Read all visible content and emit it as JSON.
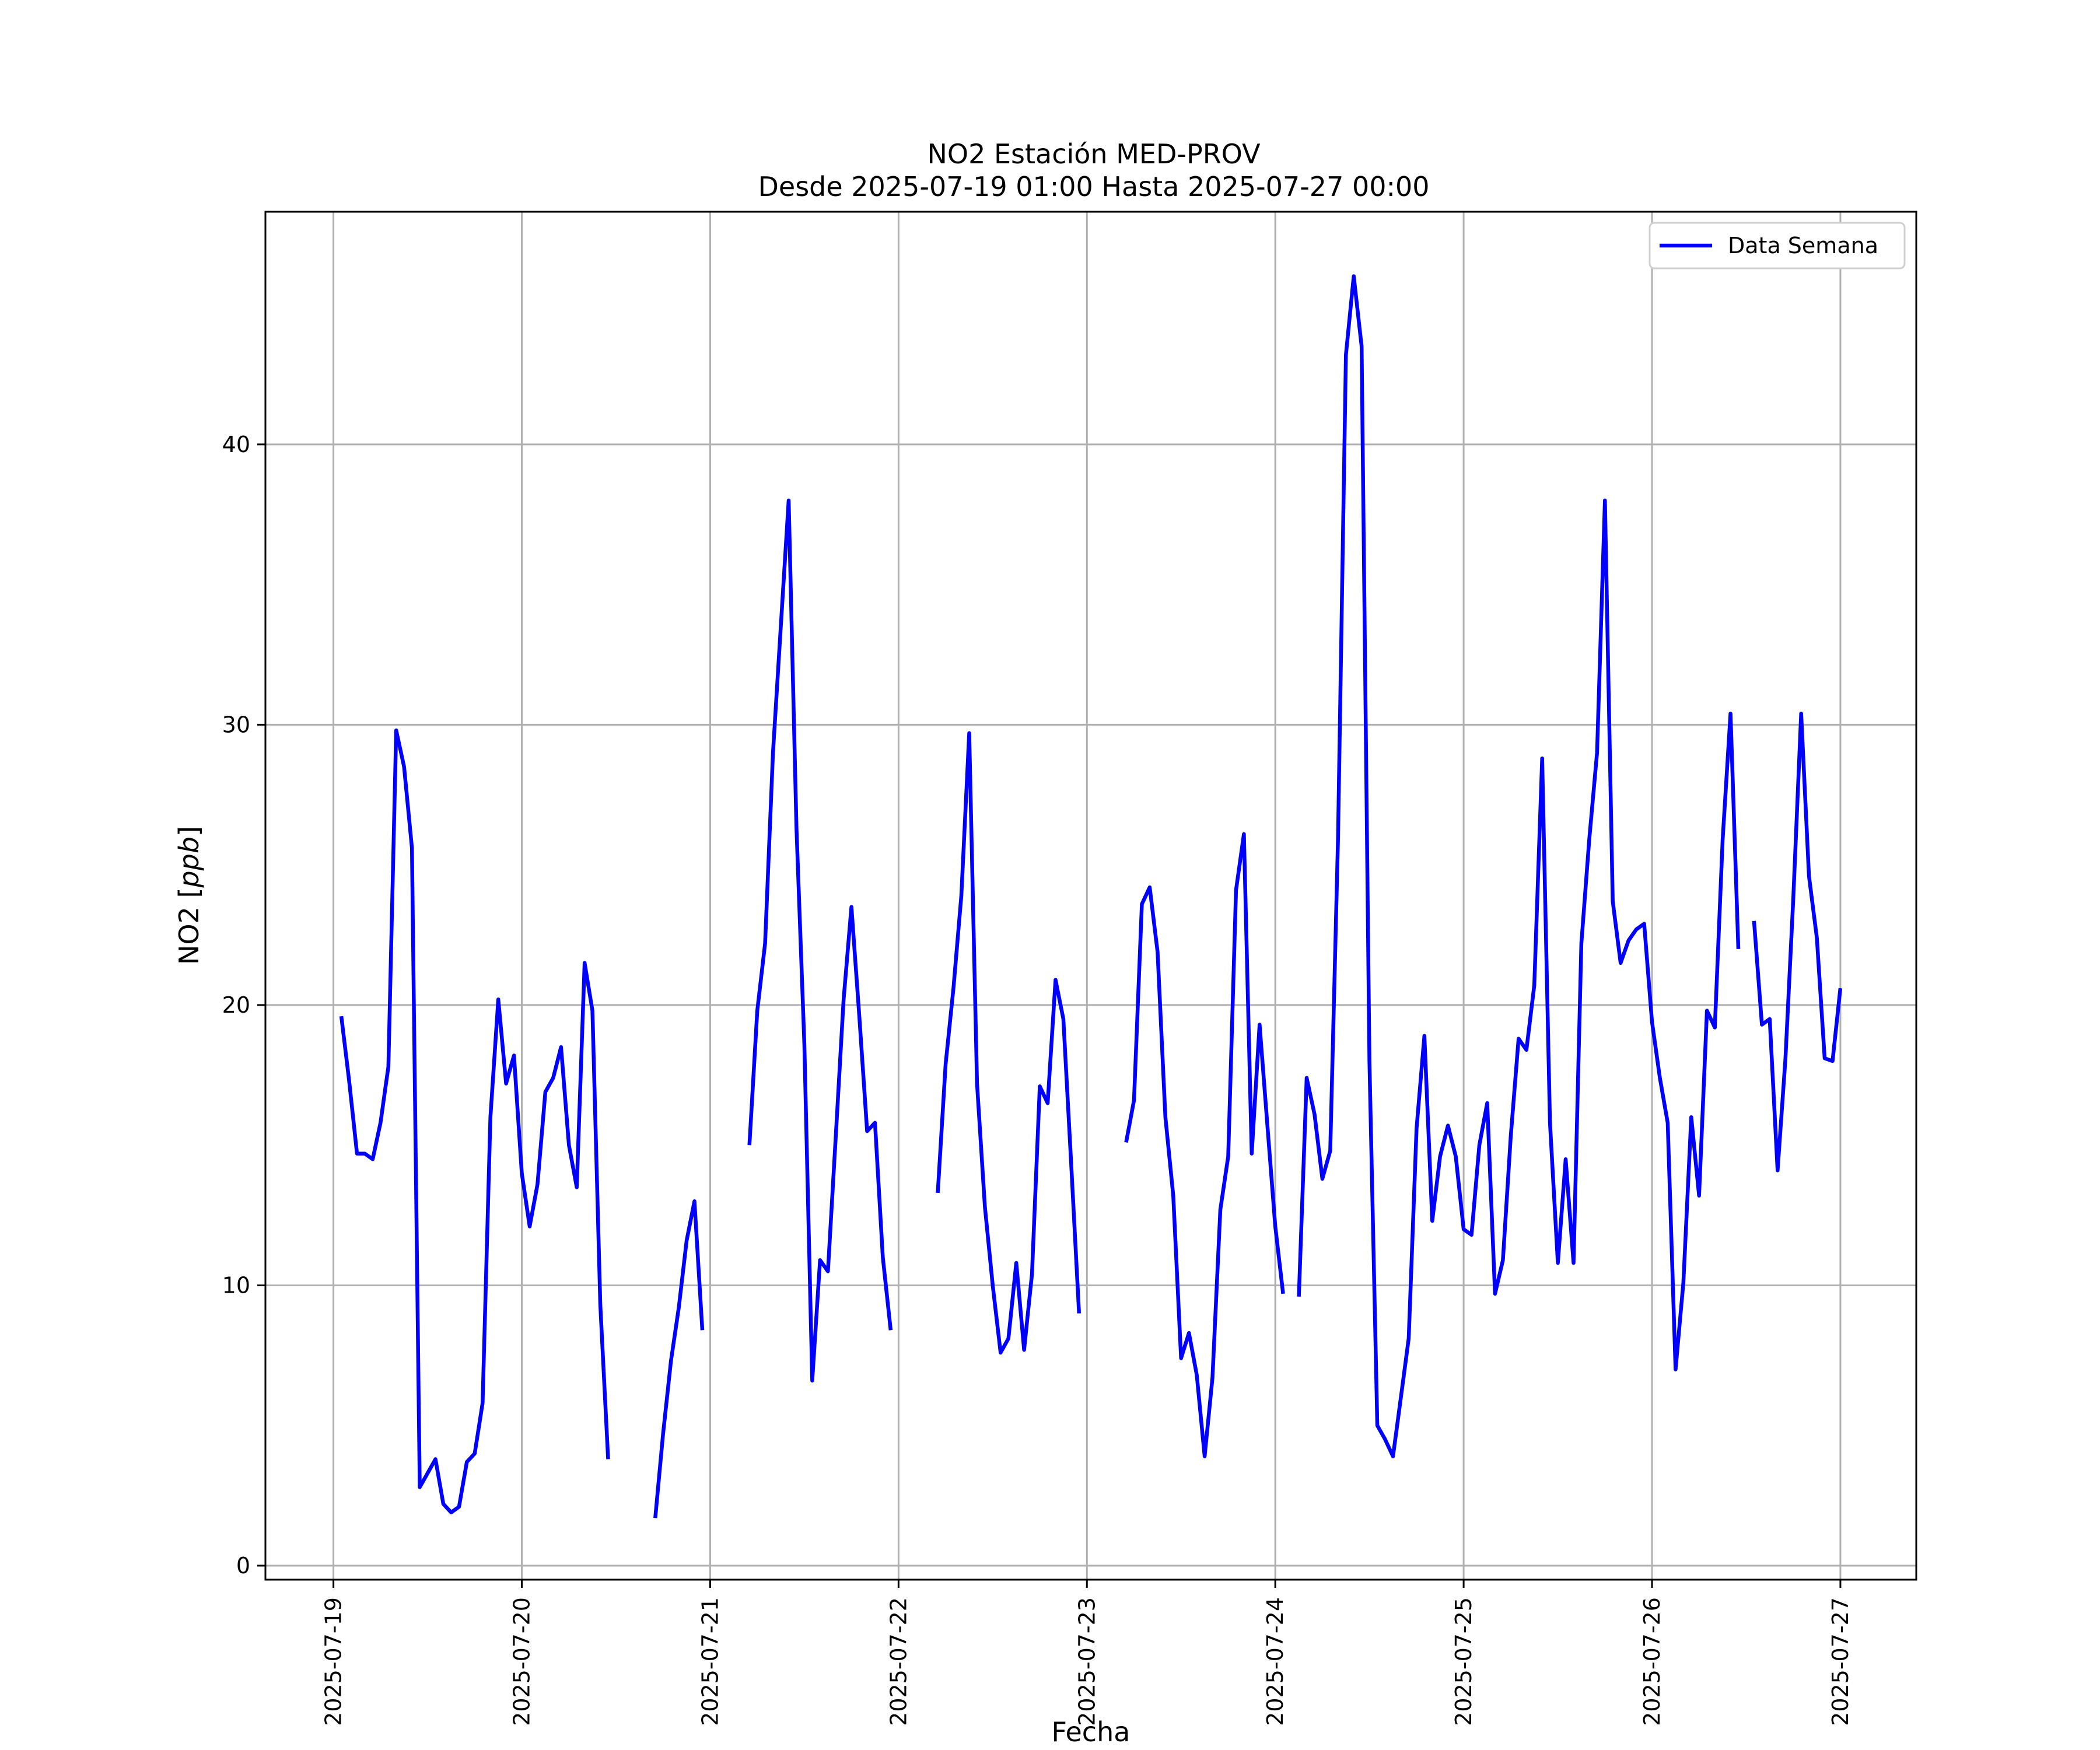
{
  "chart_data": {
    "type": "line",
    "title": "NO2 Estación MED-PROV",
    "subtitle": "Desde 2025-07-19 01:00 Hasta 2025-07-27 00:00",
    "xlabel": "Fecha",
    "ylabel": "NO2 [ppb]",
    "xlim": [
      "2025-07-18 15:20",
      "2025-07-27 09:40"
    ],
    "ylim": [
      -0.5,
      48.3
    ],
    "x_ticks": [
      "2025-07-19",
      "2025-07-20",
      "2025-07-21",
      "2025-07-22",
      "2025-07-23",
      "2025-07-24",
      "2025-07-25",
      "2025-07-26",
      "2025-07-27"
    ],
    "y_ticks": [
      0,
      10,
      20,
      30,
      40
    ],
    "grid": true,
    "legend": {
      "position": "top-right",
      "entries": [
        "Data Semana"
      ]
    },
    "colors": {
      "series": "#0000ff",
      "grid": "#b0b0b0"
    },
    "series": [
      {
        "name": "Data Semana",
        "segments": [
          [
            [
              "2025-07-19 01:00",
              19.6
            ],
            [
              "2025-07-19 02:00",
              17.3
            ],
            [
              "2025-07-19 03:00",
              14.7
            ],
            [
              "2025-07-19 04:00",
              14.7
            ],
            [
              "2025-07-19 05:00",
              14.5
            ],
            [
              "2025-07-19 06:00",
              15.8
            ],
            [
              "2025-07-19 07:00",
              17.8
            ],
            [
              "2025-07-19 08:00",
              29.8
            ],
            [
              "2025-07-19 09:00",
              28.5
            ],
            [
              "2025-07-19 10:00",
              25.6
            ],
            [
              "2025-07-19 11:00",
              2.8
            ],
            [
              "2025-07-19 12:00",
              3.3
            ],
            [
              "2025-07-19 13:00",
              3.8
            ],
            [
              "2025-07-19 14:00",
              2.2
            ],
            [
              "2025-07-19 15:00",
              1.9
            ],
            [
              "2025-07-19 16:00",
              2.1
            ],
            [
              "2025-07-19 17:00",
              3.7
            ],
            [
              "2025-07-19 18:00",
              4.0
            ],
            [
              "2025-07-19 19:00",
              5.8
            ],
            [
              "2025-07-19 20:00",
              16.0
            ],
            [
              "2025-07-19 21:00",
              20.2
            ],
            [
              "2025-07-19 22:00",
              17.2
            ],
            [
              "2025-07-19 23:00",
              18.2
            ],
            [
              "2025-07-20 00:00",
              14.0
            ],
            [
              "2025-07-20 01:00",
              12.1
            ],
            [
              "2025-07-20 02:00",
              13.6
            ],
            [
              "2025-07-20 03:00",
              16.9
            ],
            [
              "2025-07-20 04:00",
              17.4
            ],
            [
              "2025-07-20 05:00",
              18.5
            ],
            [
              "2025-07-20 06:00",
              15.0
            ],
            [
              "2025-07-20 07:00",
              13.5
            ],
            [
              "2025-07-20 08:00",
              21.5
            ],
            [
              "2025-07-20 09:00",
              19.8
            ],
            [
              "2025-07-20 10:00",
              9.3
            ],
            [
              "2025-07-20 11:00",
              3.8
            ]
          ],
          [
            [
              "2025-07-20 17:00",
              1.7
            ],
            [
              "2025-07-20 18:00",
              4.7
            ],
            [
              "2025-07-20 19:00",
              7.3
            ],
            [
              "2025-07-20 20:00",
              9.2
            ],
            [
              "2025-07-20 21:00",
              11.6
            ],
            [
              "2025-07-20 22:00",
              13.0
            ],
            [
              "2025-07-20 23:00",
              8.4
            ]
          ],
          [
            [
              "2025-07-21 05:00",
              15.0
            ],
            [
              "2025-07-21 06:00",
              19.8
            ],
            [
              "2025-07-21 07:00",
              22.2
            ],
            [
              "2025-07-21 08:00",
              29.0
            ],
            [
              "2025-07-21 09:00",
              33.5
            ],
            [
              "2025-07-21 10:00",
              38.0
            ],
            [
              "2025-07-21 11:00",
              26.3
            ],
            [
              "2025-07-21 12:00",
              18.6
            ],
            [
              "2025-07-21 13:00",
              6.6
            ],
            [
              "2025-07-21 14:00",
              10.9
            ],
            [
              "2025-07-21 15:00",
              10.5
            ],
            [
              "2025-07-21 16:00",
              15.3
            ],
            [
              "2025-07-21 17:00",
              20.2
            ],
            [
              "2025-07-21 18:00",
              23.5
            ],
            [
              "2025-07-21 19:00",
              19.6
            ],
            [
              "2025-07-21 20:00",
              15.5
            ],
            [
              "2025-07-21 21:00",
              15.8
            ],
            [
              "2025-07-21 22:00",
              11.0
            ],
            [
              "2025-07-21 23:00",
              8.4
            ]
          ],
          [
            [
              "2025-07-22 05:00",
              13.3
            ],
            [
              "2025-07-22 06:00",
              17.9
            ],
            [
              "2025-07-22 07:00",
              20.6
            ],
            [
              "2025-07-22 08:00",
              23.9
            ],
            [
              "2025-07-22 09:00",
              29.7
            ],
            [
              "2025-07-22 10:00",
              17.2
            ],
            [
              "2025-07-22 11:00",
              12.8
            ],
            [
              "2025-07-22 12:00",
              10.0
            ],
            [
              "2025-07-22 13:00",
              7.6
            ],
            [
              "2025-07-22 14:00",
              8.1
            ],
            [
              "2025-07-22 15:00",
              10.8
            ],
            [
              "2025-07-22 16:00",
              7.7
            ],
            [
              "2025-07-22 17:00",
              10.4
            ],
            [
              "2025-07-22 18:00",
              17.1
            ],
            [
              "2025-07-22 19:00",
              16.5
            ],
            [
              "2025-07-22 20:00",
              20.9
            ],
            [
              "2025-07-22 21:00",
              19.5
            ],
            [
              "2025-07-22 22:00",
              14.3
            ],
            [
              "2025-07-22 23:00",
              9.0
            ]
          ],
          [
            [
              "2025-07-23 05:00",
              15.1
            ],
            [
              "2025-07-23 06:00",
              16.6
            ],
            [
              "2025-07-23 07:00",
              23.6
            ],
            [
              "2025-07-23 08:00",
              24.2
            ],
            [
              "2025-07-23 09:00",
              21.9
            ],
            [
              "2025-07-23 10:00",
              16.0
            ],
            [
              "2025-07-23 11:00",
              13.2
            ],
            [
              "2025-07-23 12:00",
              7.4
            ],
            [
              "2025-07-23 13:00",
              8.3
            ],
            [
              "2025-07-23 14:00",
              6.8
            ],
            [
              "2025-07-23 15:00",
              3.9
            ],
            [
              "2025-07-23 16:00",
              6.7
            ],
            [
              "2025-07-23 17:00",
              12.7
            ],
            [
              "2025-07-23 18:00",
              14.6
            ],
            [
              "2025-07-23 19:00",
              24.1
            ],
            [
              "2025-07-23 20:00",
              26.1
            ],
            [
              "2025-07-23 21:00",
              14.7
            ],
            [
              "2025-07-23 22:00",
              19.3
            ],
            [
              "2025-07-23 23:00",
              15.7
            ],
            [
              "2025-07-24 00:00",
              12.1
            ],
            [
              "2025-07-24 01:00",
              9.7
            ]
          ],
          [
            [
              "2025-07-24 03:00",
              9.6
            ],
            [
              "2025-07-24 04:00",
              17.4
            ],
            [
              "2025-07-24 05:00",
              16.1
            ],
            [
              "2025-07-24 06:00",
              13.8
            ],
            [
              "2025-07-24 07:00",
              14.8
            ],
            [
              "2025-07-24 08:00",
              26.0
            ],
            [
              "2025-07-24 09:00",
              43.2
            ],
            [
              "2025-07-24 10:00",
              46.0
            ],
            [
              "2025-07-24 11:00",
              43.5
            ],
            [
              "2025-07-24 12:00",
              18.0
            ],
            [
              "2025-07-24 13:00",
              5.0
            ],
            [
              "2025-07-24 14:00",
              4.5
            ],
            [
              "2025-07-24 15:00",
              3.9
            ],
            [
              "2025-07-24 16:00",
              6.0
            ],
            [
              "2025-07-24 17:00",
              8.1
            ],
            [
              "2025-07-24 18:00",
              15.6
            ],
            [
              "2025-07-24 19:00",
              18.9
            ],
            [
              "2025-07-24 20:00",
              12.3
            ],
            [
              "2025-07-24 21:00",
              14.6
            ],
            [
              "2025-07-24 22:00",
              15.7
            ],
            [
              "2025-07-24 23:00",
              14.6
            ],
            [
              "2025-07-25 00:00",
              12.0
            ],
            [
              "2025-07-25 01:00",
              11.8
            ],
            [
              "2025-07-25 02:00",
              15.0
            ],
            [
              "2025-07-25 03:00",
              16.5
            ],
            [
              "2025-07-25 04:00",
              9.7
            ],
            [
              "2025-07-25 05:00",
              10.9
            ],
            [
              "2025-07-25 06:00",
              15.3
            ],
            [
              "2025-07-25 07:00",
              18.8
            ],
            [
              "2025-07-25 08:00",
              18.4
            ],
            [
              "2025-07-25 09:00",
              20.7
            ],
            [
              "2025-07-25 10:00",
              28.8
            ],
            [
              "2025-07-25 11:00",
              15.8
            ],
            [
              "2025-07-25 12:00",
              10.8
            ],
            [
              "2025-07-25 13:00",
              14.5
            ],
            [
              "2025-07-25 14:00",
              10.8
            ],
            [
              "2025-07-25 15:00",
              22.2
            ],
            [
              "2025-07-25 16:00",
              25.9
            ],
            [
              "2025-07-25 17:00",
              29.0
            ],
            [
              "2025-07-25 18:00",
              38.0
            ],
            [
              "2025-07-25 19:00",
              23.7
            ],
            [
              "2025-07-25 20:00",
              21.5
            ],
            [
              "2025-07-25 21:00",
              22.3
            ],
            [
              "2025-07-25 22:00",
              22.7
            ],
            [
              "2025-07-25 23:00",
              22.9
            ],
            [
              "2025-07-26 00:00",
              19.4
            ],
            [
              "2025-07-26 01:00",
              17.4
            ],
            [
              "2025-07-26 02:00",
              15.8
            ],
            [
              "2025-07-26 03:00",
              7.0
            ],
            [
              "2025-07-26 04:00",
              10.1
            ],
            [
              "2025-07-26 05:00",
              16.0
            ],
            [
              "2025-07-26 06:00",
              13.2
            ],
            [
              "2025-07-26 07:00",
              19.8
            ],
            [
              "2025-07-26 08:00",
              19.2
            ],
            [
              "2025-07-26 09:00",
              25.9
            ],
            [
              "2025-07-26 10:00",
              30.4
            ],
            [
              "2025-07-26 11:00",
              22.0
            ]
          ],
          [
            [
              "2025-07-26 13:00",
              23.0
            ],
            [
              "2025-07-26 14:00",
              19.3
            ],
            [
              "2025-07-26 15:00",
              19.5
            ],
            [
              "2025-07-26 16:00",
              14.1
            ],
            [
              "2025-07-26 17:00",
              18.1
            ],
            [
              "2025-07-26 18:00",
              23.8
            ],
            [
              "2025-07-26 19:00",
              30.4
            ],
            [
              "2025-07-26 20:00",
              24.6
            ],
            [
              "2025-07-26 21:00",
              22.4
            ],
            [
              "2025-07-26 22:00",
              18.1
            ],
            [
              "2025-07-26 23:00",
              18.0
            ],
            [
              "2025-07-27 00:00",
              20.6
            ]
          ]
        ]
      }
    ]
  }
}
